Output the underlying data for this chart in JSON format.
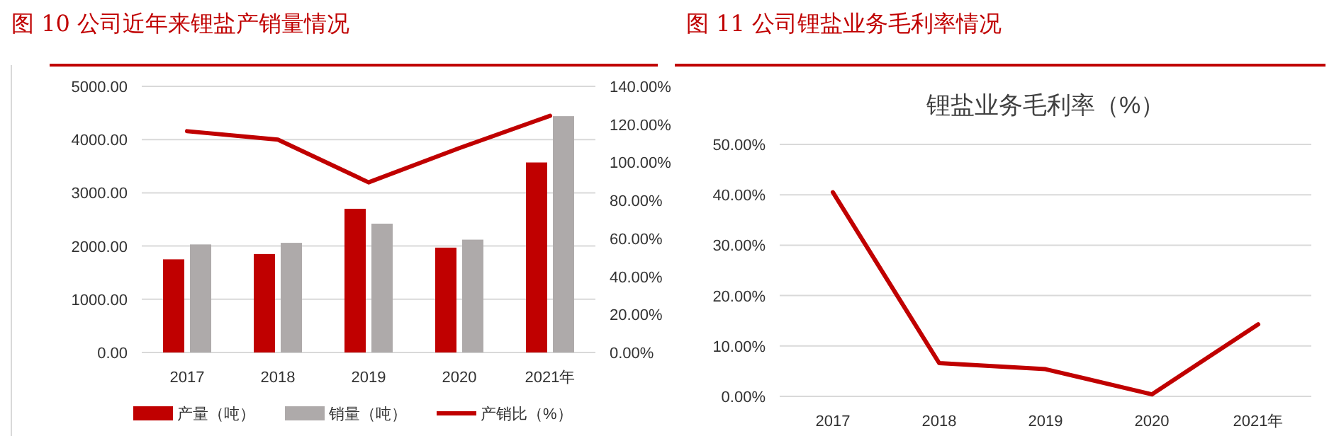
{
  "chart_data": [
    {
      "type": "bar",
      "title": "图 10 公司近年来锂盐产销量情况",
      "categories": [
        "2017",
        "2018",
        "2019",
        "2020",
        "2021年"
      ],
      "series": [
        {
          "name": "产量（吨）",
          "type": "bar",
          "color": "#c00000",
          "values": [
            1750,
            1850,
            2700,
            1970,
            3570
          ]
        },
        {
          "name": "销量（吨）",
          "type": "bar",
          "color": "#aeaaaa",
          "values": [
            2030,
            2060,
            2420,
            2120,
            4440
          ]
        },
        {
          "name": "产销比（%）",
          "type": "line",
          "axis": "y2",
          "color": "#c00000",
          "values": [
            116.4,
            112,
            89.5,
            107.5,
            124.5
          ]
        }
      ],
      "ylim": [
        0,
        5000
      ],
      "yticks": [
        {
          "value": 0,
          "label": "0.00"
        },
        {
          "value": 1000,
          "label": "1000.00"
        },
        {
          "value": 2000,
          "label": "2000.00"
        },
        {
          "value": 3000,
          "label": "3000.00"
        },
        {
          "value": 4000,
          "label": "4000.00"
        },
        {
          "value": 5000,
          "label": "5000.00"
        }
      ],
      "y2lim": [
        0,
        140
      ],
      "y2ticks": [
        {
          "value": 0,
          "label": "0.00%"
        },
        {
          "value": 20,
          "label": "20.00%"
        },
        {
          "value": 40,
          "label": "40.00%"
        },
        {
          "value": 60,
          "label": "60.00%"
        },
        {
          "value": 80,
          "label": "80.00%"
        },
        {
          "value": 100,
          "label": "100.00%"
        },
        {
          "value": 120,
          "label": "120.00%"
        },
        {
          "value": 140,
          "label": "140.00%"
        }
      ],
      "grid": "y",
      "legend": "bottom"
    },
    {
      "type": "line",
      "title": "图 11 公司锂盐业务毛利率情况",
      "subtitle": "锂盐业务毛利率（%）",
      "categories": [
        "2017",
        "2018",
        "2019",
        "2020",
        "2021年"
      ],
      "series": [
        {
          "color": "#c00000",
          "values": [
            40.5,
            6.6,
            5.4,
            0.4,
            14.3
          ]
        }
      ],
      "ylim": [
        0,
        50
      ],
      "yticks": [
        {
          "value": 0,
          "label": "0.00%"
        },
        {
          "value": 10,
          "label": "10.00%"
        },
        {
          "value": 20,
          "label": "20.00%"
        },
        {
          "value": 30,
          "label": "30.00%"
        },
        {
          "value": 40,
          "label": "40.00%"
        },
        {
          "value": 50,
          "label": "50.00%"
        }
      ],
      "grid": "y",
      "legend": false
    }
  ]
}
